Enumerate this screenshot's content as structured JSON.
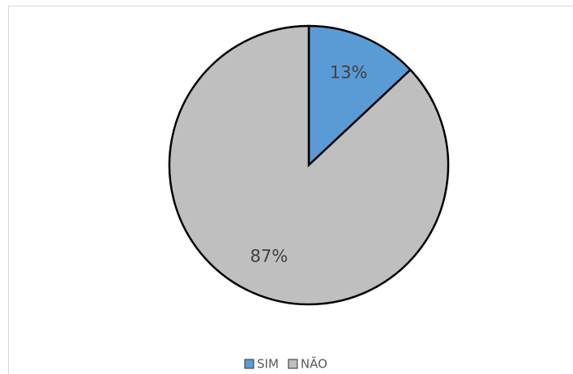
{
  "chart_data": {
    "type": "pie",
    "categories": [
      "SIM",
      "NÃO"
    ],
    "values": [
      13,
      87
    ],
    "value_labels": [
      "13%",
      "87%"
    ],
    "colors": [
      "#5b9bd5",
      "#bfbfbf"
    ],
    "legend": "bottom"
  }
}
